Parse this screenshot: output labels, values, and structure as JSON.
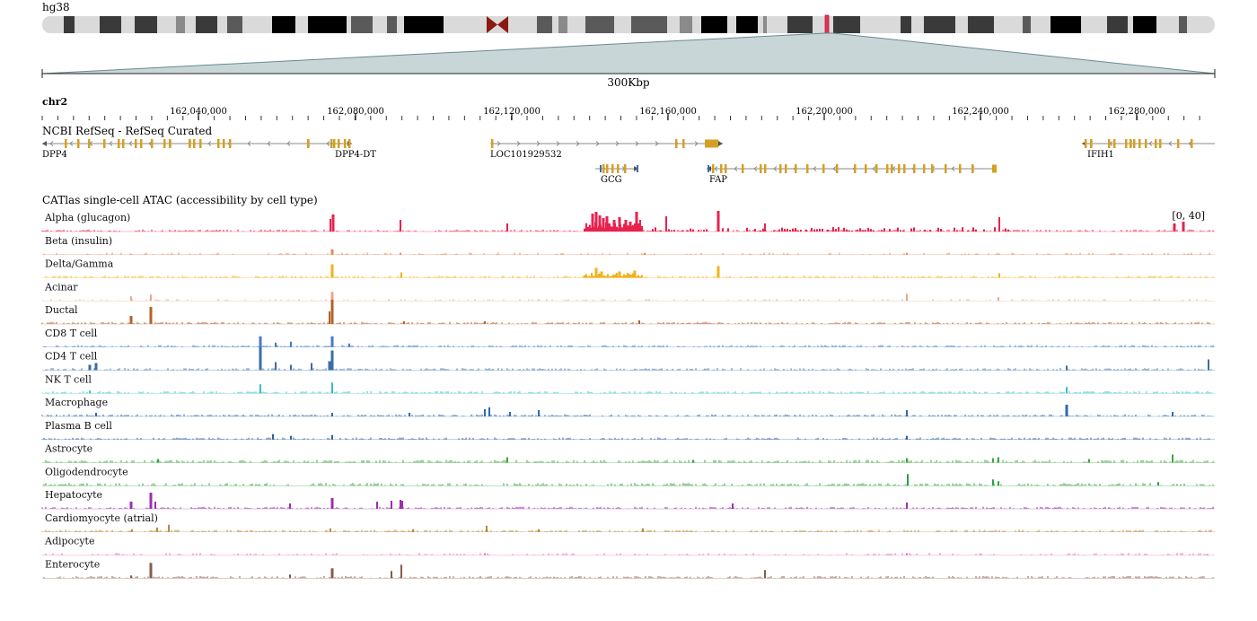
{
  "assembly": "hg38",
  "span_label": "300Kbp",
  "chromosome": "chr2",
  "ideogram": {
    "highlight_color": "#e0315a",
    "centromere_color": "#8b1a10"
  },
  "ruler": {
    "tick_labels": [
      "162,040,000",
      "162,080,000",
      "162,120,000",
      "162,160,000",
      "162,200,000",
      "162,240,000",
      "162,280,000"
    ]
  },
  "gene_track": {
    "title": "NCBI RefSeq - RefSeq Curated",
    "gene_color": "#d4a024",
    "line_color": "#888888",
    "genes": [
      {
        "name": "DPP4",
        "strand": "-"
      },
      {
        "name": "DPP4-DT",
        "strand": "+"
      },
      {
        "name": "LOC101929532",
        "strand": "+"
      },
      {
        "name": "IFIH1",
        "strand": "-"
      },
      {
        "name": "GCG",
        "strand": "+"
      },
      {
        "name": "FAP",
        "strand": "-"
      }
    ]
  },
  "atac": {
    "title": "CATlas single-cell ATAC (accessibility by cell type)",
    "scale_label": "[0, 40]",
    "tracks": [
      {
        "name": "Alpha (glucagon)",
        "color": "#e8224f"
      },
      {
        "name": "Beta (insulin)",
        "color": "#e88a5a"
      },
      {
        "name": "Delta/Gamma",
        "color": "#f2b21b"
      },
      {
        "name": "Acinar",
        "color": "#e8a98b"
      },
      {
        "name": "Ductal",
        "color": "#b5602a"
      },
      {
        "name": "CD8 T cell",
        "color": "#4a7bc4"
      },
      {
        "name": "CD4 T cell",
        "color": "#3a6ea8"
      },
      {
        "name": "NK T cell",
        "color": "#3bbcc8"
      },
      {
        "name": "Macrophage",
        "color": "#2f6ab0"
      },
      {
        "name": "Plasma B cell",
        "color": "#2c5fa0"
      },
      {
        "name": "Astrocyte",
        "color": "#3aa63a"
      },
      {
        "name": "Oligodendrocyte",
        "color": "#2f9e3f"
      },
      {
        "name": "Hepatocyte",
        "color": "#9b2fae"
      },
      {
        "name": "Cardiomyocyte (atrial)",
        "color": "#b88a3a"
      },
      {
        "name": "Adipocyte",
        "color": "#e06ab8"
      },
      {
        "name": "Enterocyte",
        "color": "#8b5a4a"
      }
    ]
  }
}
